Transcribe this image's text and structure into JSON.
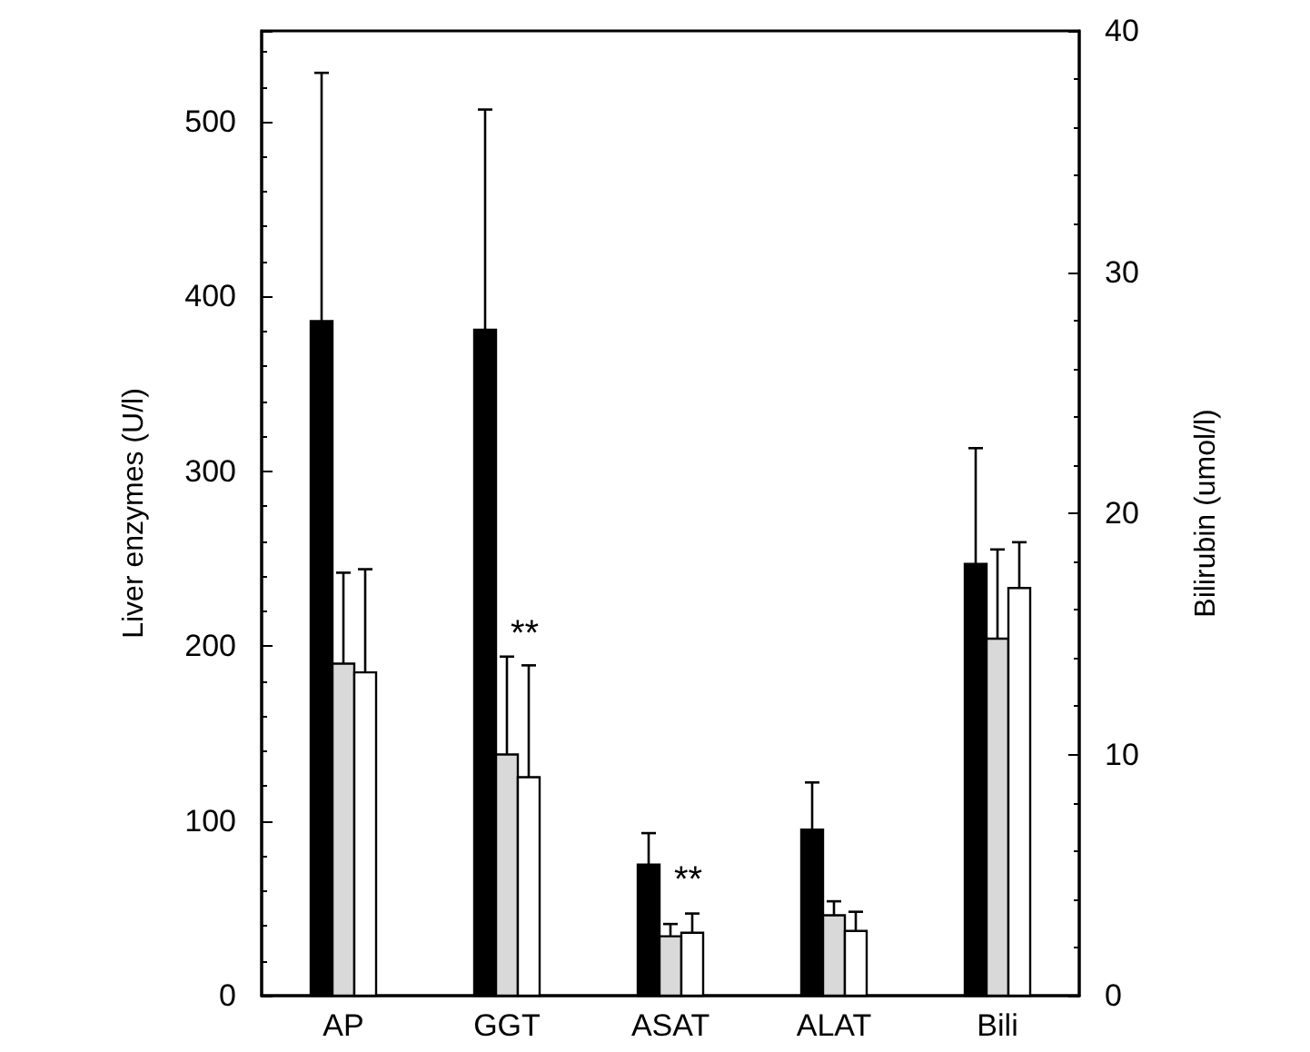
{
  "chart_data": {
    "type": "bar",
    "ylabel": "Liver enzymes (U/l)",
    "y2label": "Bilirubin (umol/l)",
    "categories": [
      "AP",
      "GGT",
      "ASAT",
      "ALAT",
      "Bili"
    ],
    "series": [
      {
        "color": "#000000",
        "values": [
          386,
          381,
          75,
          95,
          null
        ],
        "errors": [
          [
            386,
            528
          ],
          [
            381,
            507
          ],
          [
            75,
            93
          ],
          [
            95,
            122
          ],
          null
        ]
      },
      {
        "color": "#d9d9d9",
        "values": [
          190,
          138,
          34,
          46,
          null
        ],
        "errors": [
          [
            190,
            242
          ],
          [
            138,
            194
          ],
          [
            34,
            41
          ],
          [
            46,
            54
          ],
          null
        ]
      },
      {
        "color": "#ffffff",
        "values": [
          185,
          125,
          36,
          37,
          null
        ],
        "errors": [
          [
            185,
            244
          ],
          [
            125,
            189
          ],
          [
            36,
            47
          ],
          [
            37,
            48
          ],
          null
        ]
      },
      {
        "color": "#000000",
        "axis": "y2",
        "values": [
          null,
          null,
          null,
          null,
          17.9
        ],
        "errors": [
          null,
          null,
          null,
          null,
          [
            17.9,
            22.7
          ]
        ]
      },
      {
        "color": "#d9d9d9",
        "axis": "y2",
        "values": [
          null,
          null,
          null,
          null,
          14.8
        ],
        "errors": [
          null,
          null,
          null,
          null,
          [
            14.8,
            18.5
          ]
        ]
      },
      {
        "color": "#ffffff",
        "axis": "y2",
        "values": [
          null,
          null,
          null,
          null,
          16.9
        ],
        "errors": [
          null,
          null,
          null,
          null,
          [
            16.9,
            18.8
          ]
        ]
      }
    ],
    "ylim": [
      0,
      552
    ],
    "yticks": [
      0,
      100,
      200,
      300,
      400,
      500
    ],
    "y2lim": [
      0,
      40
    ],
    "y2ticks": [
      0,
      10,
      20,
      30,
      40
    ],
    "annotations": [
      "**",
      "**"
    ]
  }
}
